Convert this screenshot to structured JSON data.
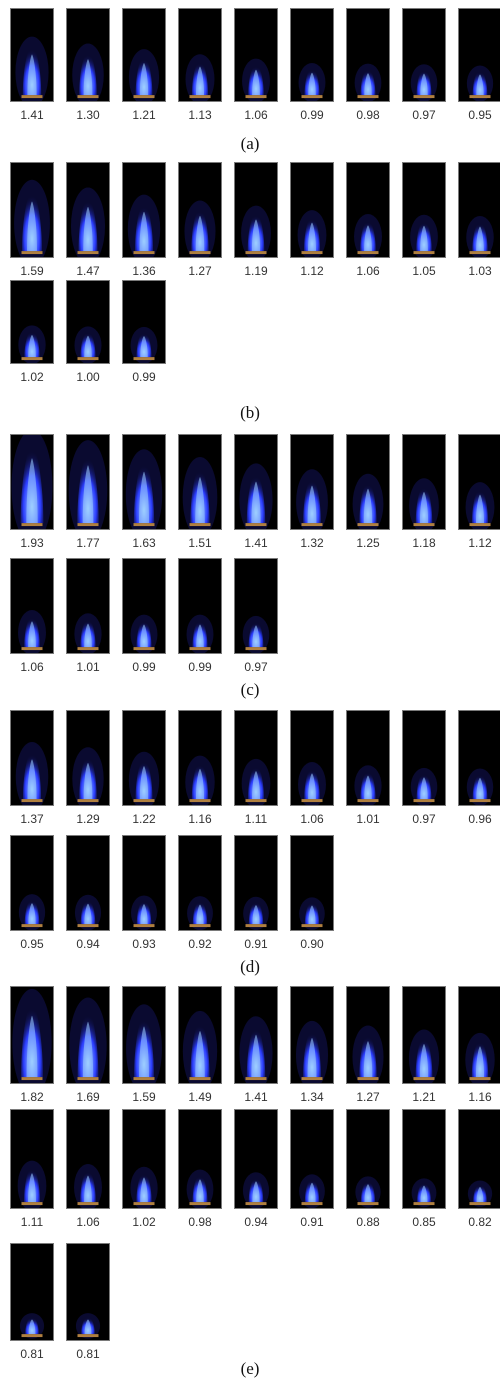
{
  "panels": [
    {
      "label": "(a)",
      "values": [
        "1.41",
        "1.30",
        "1.21",
        "1.13",
        "1.06",
        "0.99",
        "0.98",
        "0.97",
        "0.95"
      ]
    },
    {
      "label": "(b)",
      "values": [
        "1.59",
        "1.47",
        "1.36",
        "1.27",
        "1.19",
        "1.12",
        "1.06",
        "1.05",
        "1.03",
        "1.02",
        "1.00",
        "0.99"
      ]
    },
    {
      "label": "(c)",
      "values": [
        "1.93",
        "1.77",
        "1.63",
        "1.51",
        "1.41",
        "1.32",
        "1.25",
        "1.18",
        "1.12",
        "1.06",
        "1.01",
        "0.99",
        "0.99",
        "0.97"
      ]
    },
    {
      "label": "(d)",
      "values": [
        "1.37",
        "1.29",
        "1.22",
        "1.16",
        "1.11",
        "1.06",
        "1.01",
        "0.97",
        "0.96",
        "0.95",
        "0.94",
        "0.93",
        "0.92",
        "0.91",
        "0.90"
      ]
    },
    {
      "label": "(e)",
      "values": [
        "1.82",
        "1.69",
        "1.59",
        "1.49",
        "1.41",
        "1.34",
        "1.27",
        "1.21",
        "1.16",
        "1.11",
        "1.06",
        "1.02",
        "0.98",
        "0.94",
        "0.91",
        "0.88",
        "0.85",
        "0.82",
        "0.81",
        "0.81"
      ]
    }
  ],
  "colors": {
    "flame_outer": "#2a3cff",
    "flame_core": "#9fd0ff",
    "background": "#000000",
    "burner": "#b08040"
  },
  "icons": {
    "flame": "flame-icon"
  }
}
